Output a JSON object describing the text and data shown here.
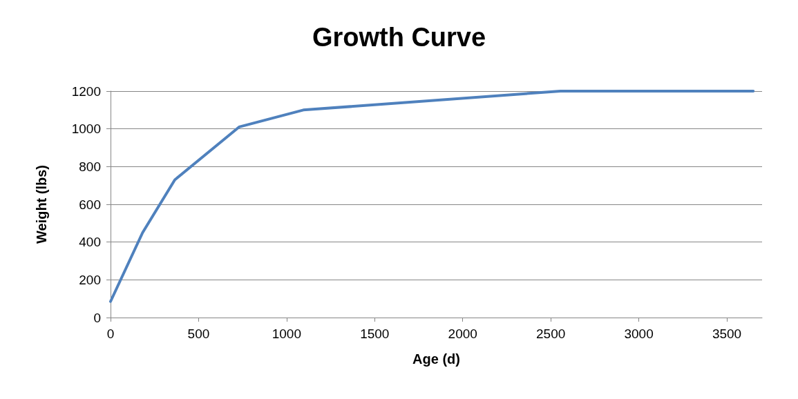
{
  "chart_data": {
    "type": "line",
    "title": "Growth Curve",
    "xlabel": "Age (d)",
    "ylabel": "Weight (lbs)",
    "series": [
      {
        "color": "#4f81bd",
        "x": [
          0,
          182,
          365,
          730,
          1095,
          2555,
          3650
        ],
        "values": [
          85,
          450,
          730,
          1010,
          1100,
          1200,
          1200
        ]
      }
    ],
    "xlim": [
      0,
      3700
    ],
    "xticks": [
      0,
      500,
      1000,
      1500,
      2000,
      2500,
      3000,
      3500
    ],
    "ylim": [
      0,
      1200
    ],
    "yticks": [
      0,
      200,
      400,
      600,
      800,
      1000,
      1200
    ],
    "grid": "y",
    "marker": "none",
    "line_style": "solid"
  }
}
